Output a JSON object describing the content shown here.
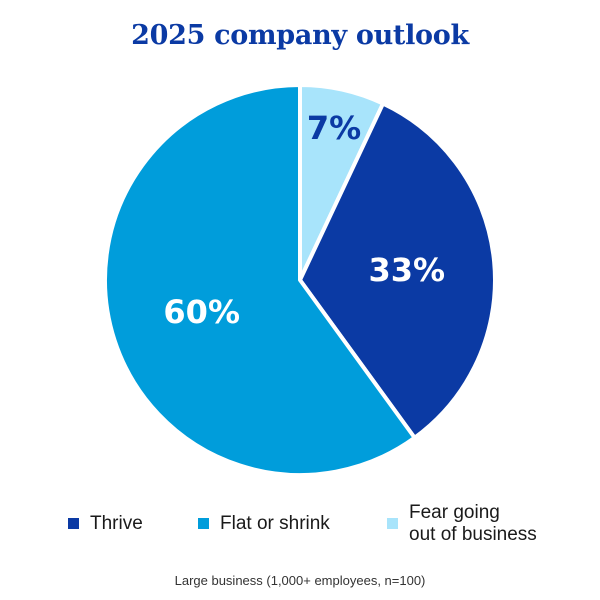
{
  "chart_data": {
    "type": "pie",
    "title": "2025 company outlook",
    "slices": [
      {
        "label": "Thrive",
        "value": 33,
        "display": "33%",
        "color": "#0b3aa4",
        "label_color": "#ffffff"
      },
      {
        "label": "Flat or shrink",
        "value": 60,
        "display": "60%",
        "color": "#009ddb",
        "label_color": "#ffffff"
      },
      {
        "label": "Fear going\nout of business",
        "value": 7,
        "display": "7%",
        "color": "#a8e4fb",
        "label_color": "#0b3aa4"
      }
    ],
    "legend_position": "bottom",
    "footnote": "Large business (1,000+ employees, n=100)"
  }
}
